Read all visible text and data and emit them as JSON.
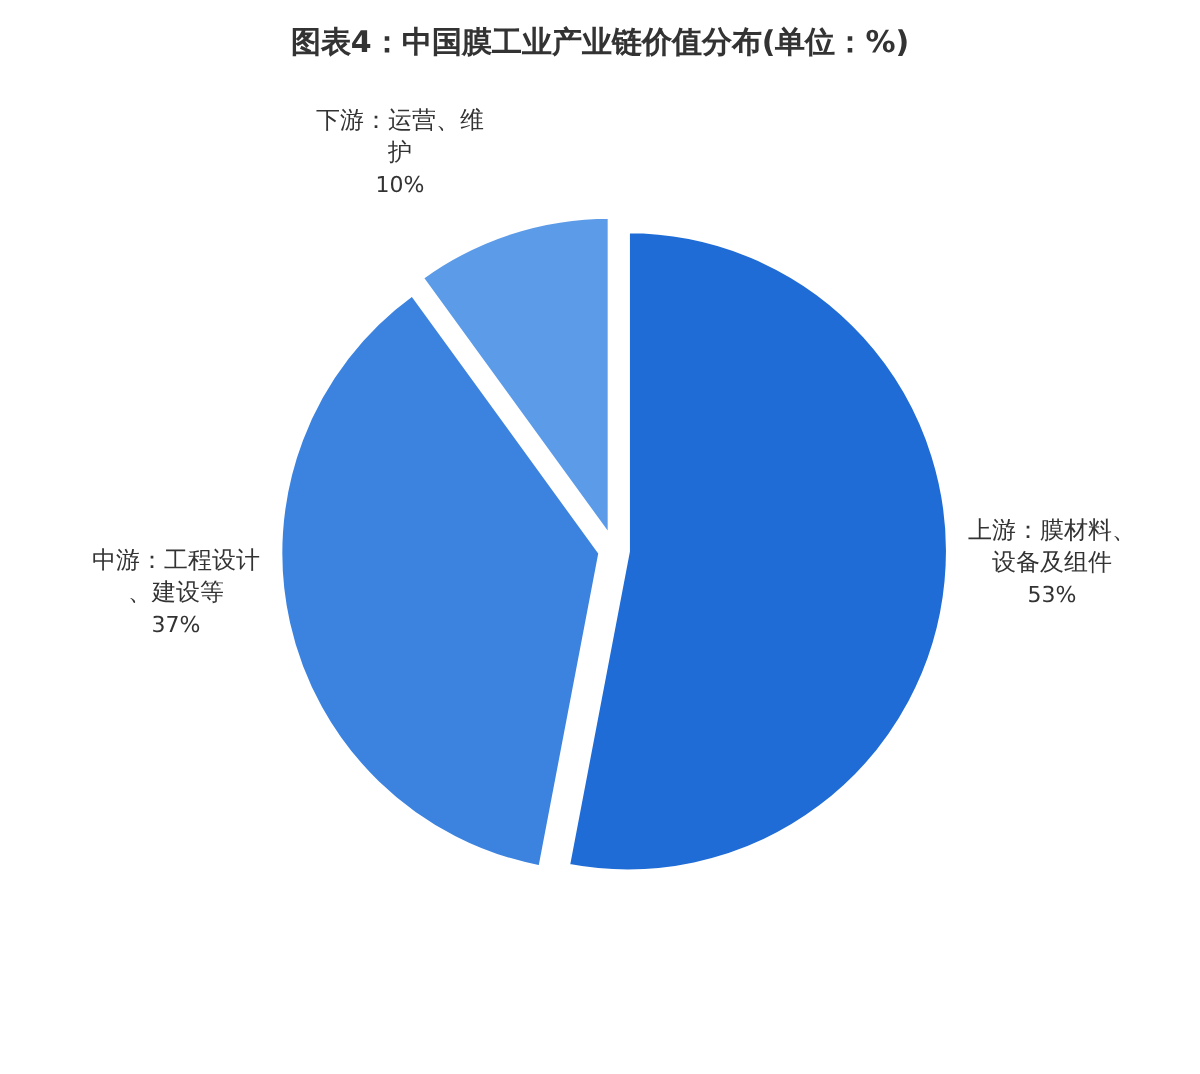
{
  "chart_data": {
    "type": "pie",
    "title": "图表4：中国膜工业产业链价值分布(单位：%)",
    "categories": [
      "上游：膜材料、设备及组件",
      "中游：工程设计、建设等",
      "下游：运营、维护"
    ],
    "values": [
      53,
      37,
      10
    ],
    "value_labels": [
      "53%",
      "37%",
      "10%"
    ],
    "colors": [
      "#1f6cd6",
      "#3c83e0",
      "#5c9be8"
    ]
  }
}
